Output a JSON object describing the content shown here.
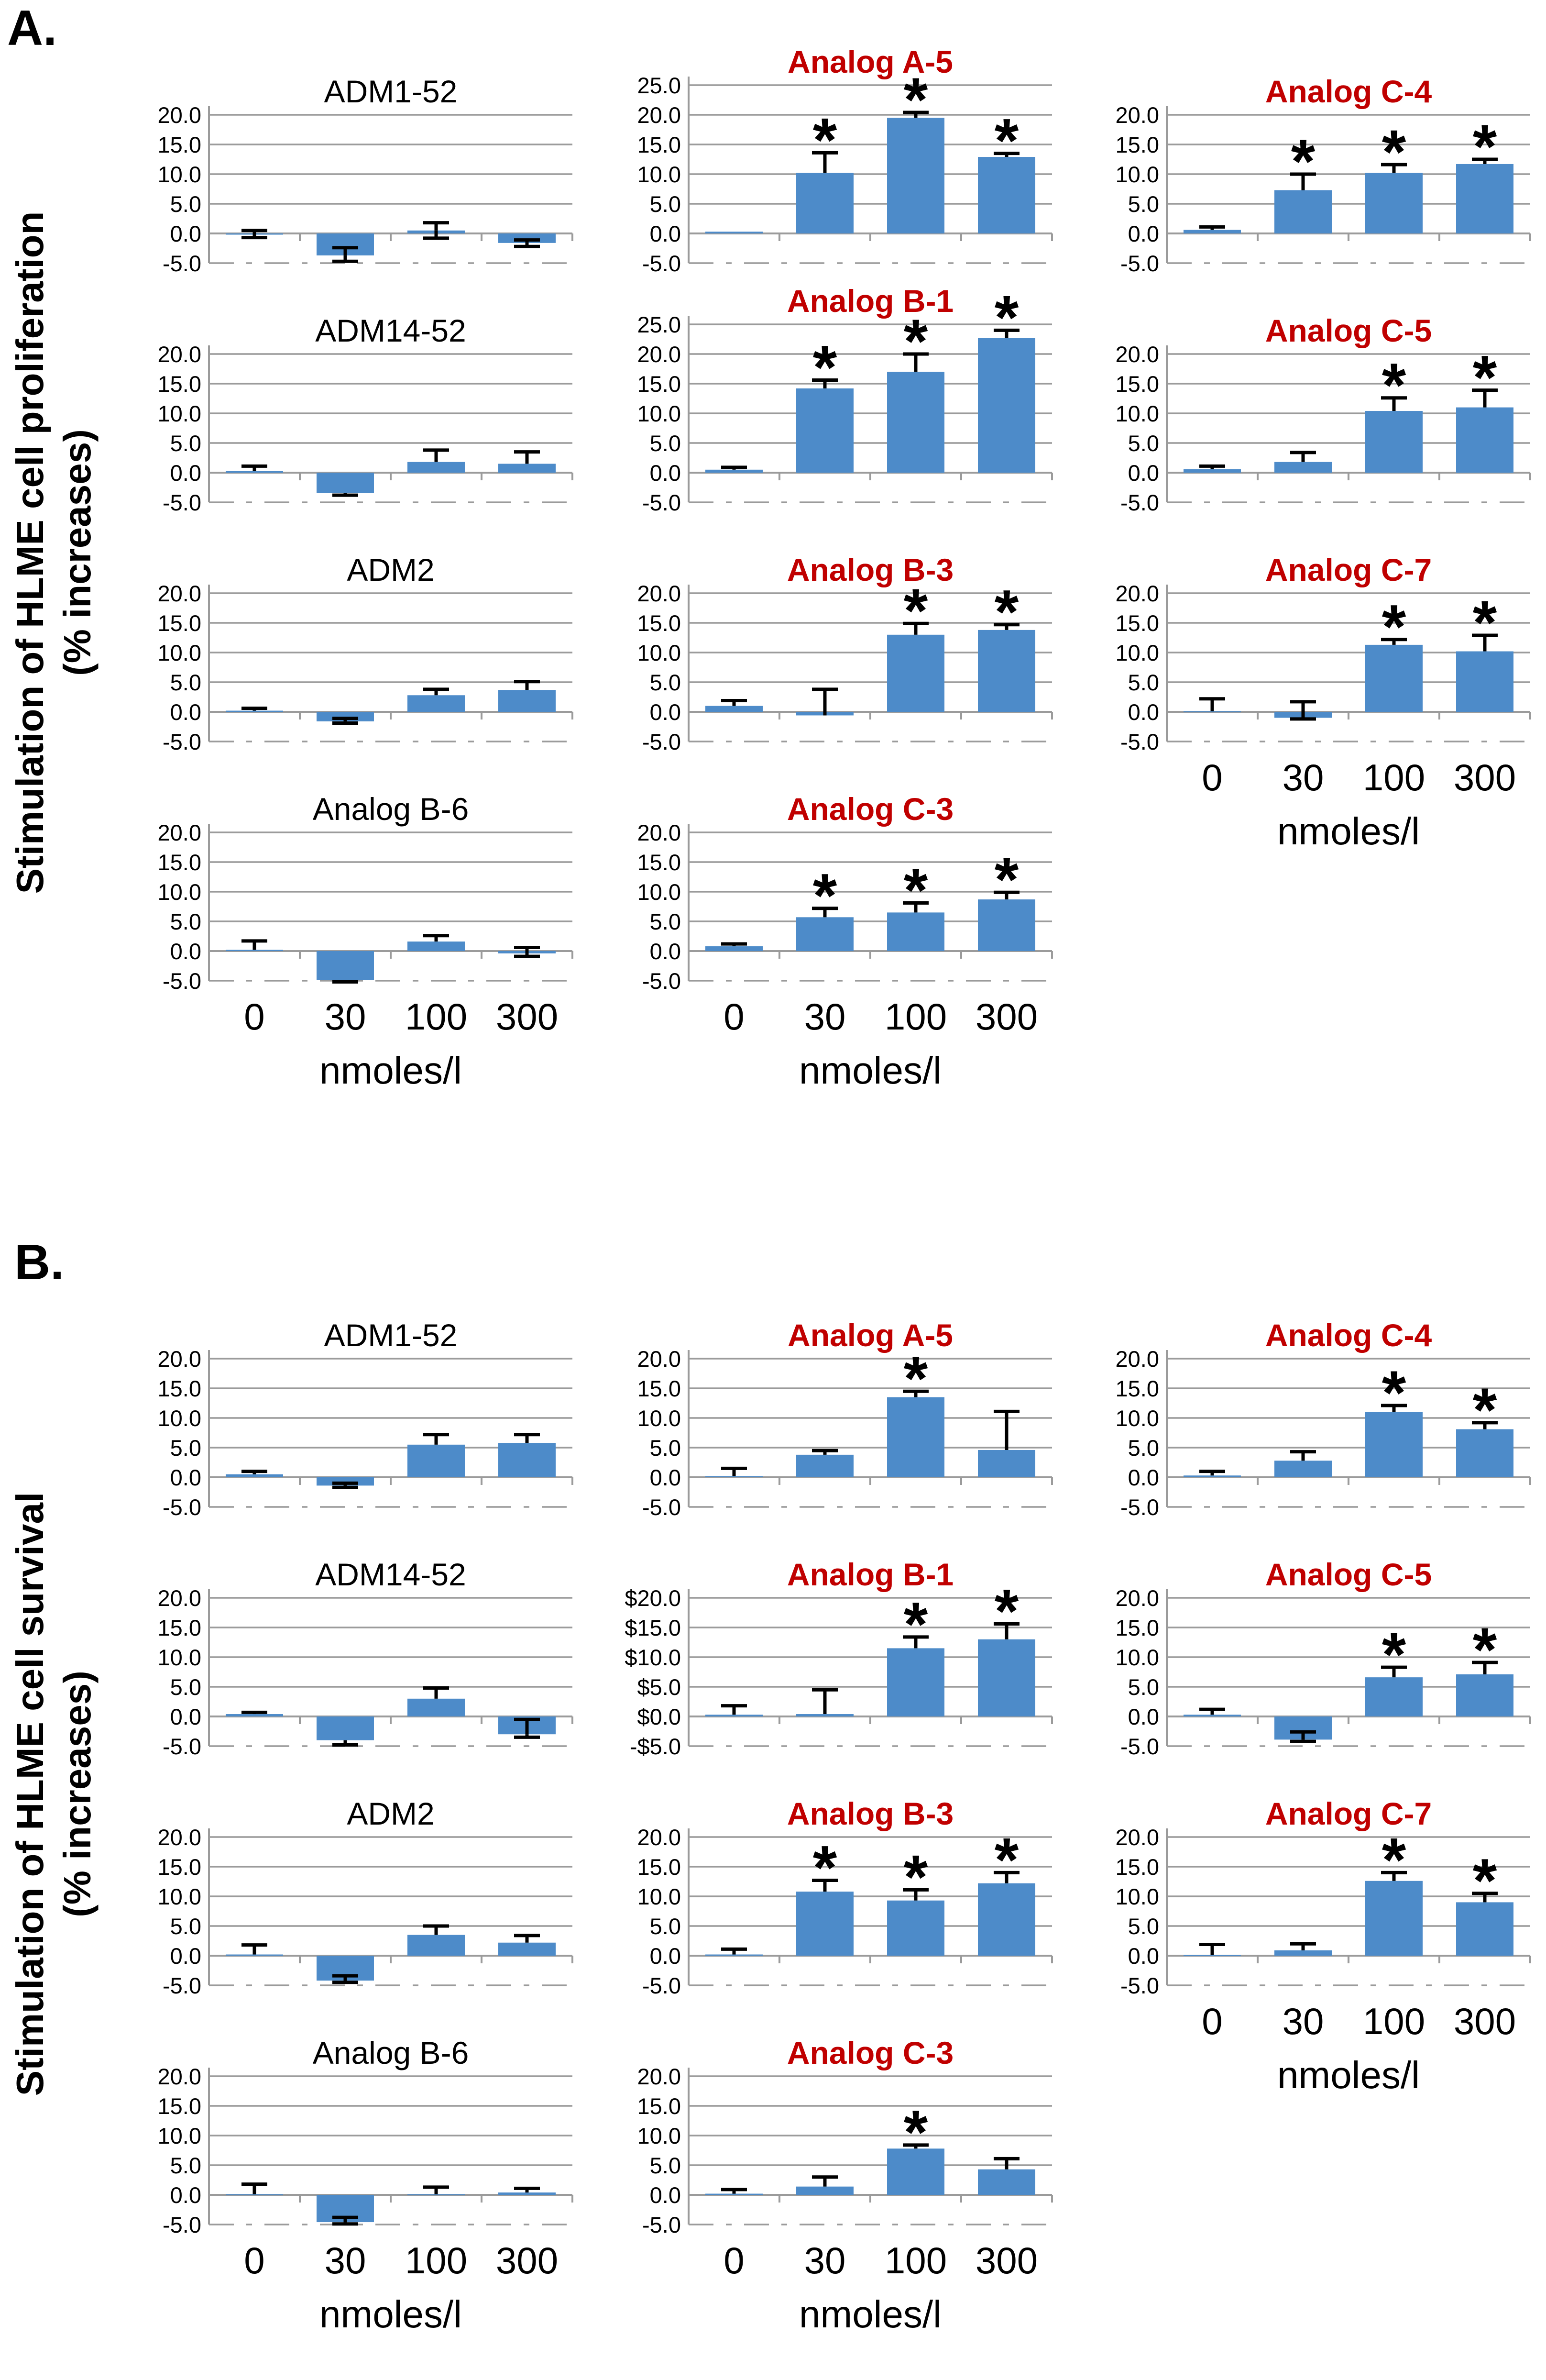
{
  "chart_data": [
    {
      "panel_label": "A.",
      "type": "bar",
      "ylabel_line1": "Stimulation of HLME cell proliferation",
      "ylabel_line2": "(% increases)",
      "xlabel": "nmoles/l",
      "categories": [
        "0",
        "30",
        "100",
        "300"
      ],
      "bar_color": "#4D8BC9",
      "grid_color": "#9B9B9B",
      "red_title_color": "#C00000",
      "black_title_color": "#000000",
      "charts": [
        {
          "title": "ADM1-52",
          "title_color": "#000000",
          "column": 0,
          "row": 0,
          "ylim": [
            -5,
            20
          ],
          "ytick_labels": [
            "20.0",
            "15.0",
            "10.0",
            "5.0",
            "0.0",
            "-5.0"
          ],
          "values": [
            -0.2,
            -3.7,
            0.5,
            -1.6
          ],
          "err_up": [
            0.7,
            1.3,
            1.3,
            0.5
          ],
          "err_dn": [
            0.5,
            1.0,
            1.3,
            0.6
          ],
          "sig": [
            false,
            false,
            false,
            false
          ]
        },
        {
          "title": "ADM14-52",
          "title_color": "#000000",
          "column": 0,
          "row": 1,
          "ylim": [
            -5,
            20
          ],
          "ytick_labels": [
            "20.0",
            "15.0",
            "10.0",
            "5.0",
            "0.0",
            "-5.0"
          ],
          "values": [
            0.3,
            -3.4,
            1.8,
            1.5
          ],
          "err_up": [
            0.8,
            0,
            2.0,
            2.0
          ],
          "err_dn": [
            0,
            0.4,
            0,
            0
          ],
          "sig": [
            false,
            false,
            false,
            false
          ]
        },
        {
          "title": "ADM2",
          "title_color": "#000000",
          "column": 0,
          "row": 2,
          "ylim": [
            -5,
            20
          ],
          "ytick_labels": [
            "20.0",
            "15.0",
            "10.0",
            "5.0",
            "0.0",
            "-5.0"
          ],
          "values": [
            0.2,
            -1.6,
            2.8,
            3.7
          ],
          "err_up": [
            0.4,
            0.5,
            1.0,
            1.4
          ],
          "err_dn": [
            0,
            0.3,
            0,
            0
          ],
          "sig": [
            false,
            false,
            false,
            false
          ]
        },
        {
          "title": "Analog B-6",
          "title_color": "#000000",
          "column": 0,
          "row": 3,
          "ylim": [
            -5,
            20
          ],
          "ytick_labels": [
            "20.0",
            "15.0",
            "10.0",
            "5.0",
            "0.0",
            "-5.0"
          ],
          "values": [
            0.2,
            -4.9,
            1.6,
            -0.4
          ],
          "err_up": [
            1.5,
            0,
            1.0,
            1.0
          ],
          "err_dn": [
            0,
            0.3,
            0,
            0.5
          ],
          "sig": [
            false,
            false,
            false,
            false
          ]
        },
        {
          "title": "Analog A-5",
          "title_color": "#C00000",
          "column": 1,
          "row": 0,
          "ylim": [
            -5,
            25
          ],
          "ytick_labels": [
            "25.0",
            "20.0",
            "15.0",
            "10.0",
            "5.0",
            "0.0",
            "-5.0"
          ],
          "values": [
            0.3,
            10.2,
            19.5,
            12.9
          ],
          "err_up": [
            0,
            3.4,
            0.9,
            0.6
          ],
          "err_dn": [
            0,
            0,
            0,
            0
          ],
          "sig": [
            false,
            true,
            true,
            true
          ]
        },
        {
          "title": "Analog B-1",
          "title_color": "#C00000",
          "column": 1,
          "row": 1,
          "ylim": [
            -5,
            25
          ],
          "ytick_labels": [
            "25.0",
            "20.0",
            "15.0",
            "10.0",
            "5.0",
            "0.0",
            "-5.0"
          ],
          "values": [
            0.5,
            14.2,
            17.0,
            22.7
          ],
          "err_up": [
            0.4,
            1.4,
            3.0,
            1.3
          ],
          "err_dn": [
            0,
            0,
            0,
            0
          ],
          "sig": [
            false,
            true,
            true,
            true
          ]
        },
        {
          "title": "Analog B-3",
          "title_color": "#C00000",
          "column": 1,
          "row": 2,
          "ylim": [
            -5,
            20
          ],
          "ytick_labels": [
            "20.0",
            "15.0",
            "10.0",
            "5.0",
            "0.0",
            "-5.0"
          ],
          "values": [
            1.0,
            -0.6,
            13.0,
            13.8
          ],
          "err_up": [
            0.9,
            4.4,
            1.9,
            0.9
          ],
          "err_dn": [
            0,
            0,
            0,
            0
          ],
          "sig": [
            false,
            false,
            true,
            true
          ]
        },
        {
          "title": "Analog C-3",
          "title_color": "#C00000",
          "column": 1,
          "row": 3,
          "ylim": [
            -5,
            20
          ],
          "ytick_labels": [
            "20.0",
            "15.0",
            "10.0",
            "5.0",
            "0.0",
            "-5.0"
          ],
          "values": [
            0.8,
            5.7,
            6.5,
            8.7
          ],
          "err_up": [
            0.4,
            1.5,
            1.6,
            1.2
          ],
          "err_dn": [
            0,
            0,
            0,
            0
          ],
          "sig": [
            false,
            true,
            true,
            true
          ]
        },
        {
          "title": "Analog C-4",
          "title_color": "#C00000",
          "column": 2,
          "row": 0,
          "ylim": [
            -5,
            20
          ],
          "ytick_labels": [
            "20.0",
            "15.0",
            "10.0",
            "5.0",
            "0.0",
            "-5.0"
          ],
          "values": [
            0.6,
            7.3,
            10.2,
            11.7
          ],
          "err_up": [
            0.5,
            2.7,
            1.4,
            0.8
          ],
          "err_dn": [
            0,
            0,
            0,
            0
          ],
          "sig": [
            false,
            true,
            true,
            true
          ]
        },
        {
          "title": "Analog C-5",
          "title_color": "#C00000",
          "column": 2,
          "row": 1,
          "ylim": [
            -5,
            20
          ],
          "ytick_labels": [
            "20.0",
            "15.0",
            "10.0",
            "5.0",
            "0.0",
            "-5.0"
          ],
          "values": [
            0.6,
            1.8,
            10.4,
            11.0
          ],
          "err_up": [
            0.5,
            1.6,
            2.2,
            2.9
          ],
          "err_dn": [
            0,
            0,
            0,
            0
          ],
          "sig": [
            false,
            false,
            true,
            true
          ]
        },
        {
          "title": "Analog C-7",
          "title_color": "#C00000",
          "column": 2,
          "row": 2,
          "ylim": [
            -5,
            20
          ],
          "ytick_labels": [
            "20.0",
            "15.0",
            "10.0",
            "5.0",
            "0.0",
            "-5.0"
          ],
          "values": [
            0.1,
            -1.0,
            11.3,
            10.2
          ],
          "err_up": [
            2.1,
            2.7,
            0.9,
            2.7
          ],
          "err_dn": [
            0,
            0.2,
            0,
            0
          ],
          "sig": [
            false,
            false,
            true,
            true
          ]
        }
      ]
    },
    {
      "panel_label": "B.",
      "type": "bar",
      "ylabel_line1": "Stimulation of HLME cell survival",
      "ylabel_line2": "(% increases)",
      "xlabel": "nmoles/l",
      "categories": [
        "0",
        "30",
        "100",
        "300"
      ],
      "bar_color": "#4D8BC9",
      "grid_color": "#9B9B9B",
      "red_title_color": "#C00000",
      "black_title_color": "#000000",
      "charts": [
        {
          "title": "ADM1-52",
          "title_color": "#000000",
          "column": 0,
          "row": 0,
          "ylim": [
            -5,
            20
          ],
          "ytick_labels": [
            "20.0",
            "15.0",
            "10.0",
            "5.0",
            "0.0",
            "-5.0"
          ],
          "values": [
            0.5,
            -1.4,
            5.5,
            5.8
          ],
          "err_up": [
            0.5,
            0.4,
            1.7,
            1.4
          ],
          "err_dn": [
            0,
            0.3,
            0,
            0
          ],
          "sig": [
            false,
            false,
            false,
            false
          ]
        },
        {
          "title": "ADM14-52",
          "title_color": "#000000",
          "column": 0,
          "row": 1,
          "ylim": [
            -5,
            20
          ],
          "ytick_labels": [
            "20.0",
            "15.0",
            "10.0",
            "5.0",
            "0.0",
            "-5.0"
          ],
          "values": [
            0.4,
            -4.0,
            3.0,
            -3.0
          ],
          "err_up": [
            0.3,
            0,
            1.8,
            2.5
          ],
          "err_dn": [
            0,
            0.8,
            0,
            0.5
          ],
          "sig": [
            false,
            false,
            false,
            false
          ]
        },
        {
          "title": "ADM2",
          "title_color": "#000000",
          "column": 0,
          "row": 2,
          "ylim": [
            -5,
            20
          ],
          "ytick_labels": [
            "20.0",
            "15.0",
            "10.0",
            "5.0",
            "0.0",
            "-5.0"
          ],
          "values": [
            0.2,
            -4.2,
            3.5,
            2.2
          ],
          "err_up": [
            1.6,
            0.8,
            1.5,
            1.2
          ],
          "err_dn": [
            0,
            0.3,
            0,
            0
          ],
          "sig": [
            false,
            false,
            false,
            false
          ]
        },
        {
          "title": "Analog B-6",
          "title_color": "#000000",
          "column": 0,
          "row": 3,
          "ylim": [
            -5,
            20
          ],
          "ytick_labels": [
            "20.0",
            "15.0",
            "10.0",
            "5.0",
            "0.0",
            "-5.0"
          ],
          "values": [
            0.1,
            -4.6,
            0.1,
            0.4
          ],
          "err_up": [
            1.7,
            0.8,
            1.2,
            0.7
          ],
          "err_dn": [
            0,
            0.3,
            0,
            0
          ],
          "sig": [
            false,
            false,
            false,
            false
          ]
        },
        {
          "title": "Analog A-5",
          "title_color": "#C00000",
          "column": 1,
          "row": 0,
          "ylim": [
            -5,
            20
          ],
          "ytick_labels": [
            "20.0",
            "15.0",
            "10.0",
            "5.0",
            "0.0",
            "-5.0"
          ],
          "values": [
            0.2,
            3.8,
            13.5,
            4.6
          ],
          "err_up": [
            1.3,
            0.7,
            1.0,
            6.5
          ],
          "err_dn": [
            0,
            0,
            0,
            0
          ],
          "sig": [
            false,
            false,
            true,
            false
          ]
        },
        {
          "title": "Analog B-1",
          "title_color": "#C00000",
          "column": 1,
          "row": 1,
          "ylim": [
            -5,
            20
          ],
          "ytick_labels": [
            "$20.0",
            "$15.0",
            "$10.0",
            "$5.0",
            "$0.0",
            "-$5.0"
          ],
          "values": [
            0.3,
            0.4,
            11.5,
            13.0
          ],
          "err_up": [
            1.5,
            4.1,
            1.9,
            2.6
          ],
          "err_dn": [
            0,
            0,
            0,
            0
          ],
          "sig": [
            false,
            false,
            true,
            true
          ]
        },
        {
          "title": "Analog B-3",
          "title_color": "#C00000",
          "column": 1,
          "row": 2,
          "ylim": [
            -5,
            20
          ],
          "ytick_labels": [
            "20.0",
            "15.0",
            "10.0",
            "5.0",
            "0.0",
            "-5.0"
          ],
          "values": [
            0.2,
            10.8,
            9.3,
            12.2
          ],
          "err_up": [
            0.9,
            1.9,
            1.8,
            1.8
          ],
          "err_dn": [
            0,
            0,
            0,
            0
          ],
          "sig": [
            false,
            true,
            true,
            true
          ]
        },
        {
          "title": "Analog C-3",
          "title_color": "#C00000",
          "column": 1,
          "row": 3,
          "ylim": [
            -5,
            20
          ],
          "ytick_labels": [
            "20.0",
            "15.0",
            "10.0",
            "5.0",
            "0.0",
            "-5.0"
          ],
          "values": [
            0.2,
            1.4,
            7.8,
            4.3
          ],
          "err_up": [
            0.7,
            1.6,
            0.6,
            1.8
          ],
          "err_dn": [
            0,
            0,
            0,
            0
          ],
          "sig": [
            false,
            false,
            true,
            false
          ]
        },
        {
          "title": "Analog C-4",
          "title_color": "#C00000",
          "column": 2,
          "row": 0,
          "ylim": [
            -5,
            20
          ],
          "ytick_labels": [
            "20.0",
            "15.0",
            "10.0",
            "5.0",
            "0.0",
            "-5.0"
          ],
          "values": [
            0.3,
            2.8,
            11.0,
            8.1
          ],
          "err_up": [
            0.7,
            1.5,
            1.1,
            1.1
          ],
          "err_dn": [
            0,
            0,
            0,
            0
          ],
          "sig": [
            false,
            false,
            true,
            true
          ]
        },
        {
          "title": "Analog C-5",
          "title_color": "#C00000",
          "column": 2,
          "row": 1,
          "ylim": [
            -5,
            20
          ],
          "ytick_labels": [
            "20.0",
            "15.0",
            "10.0",
            "5.0",
            "0.0",
            "-5.0"
          ],
          "values": [
            0.3,
            -3.9,
            6.6,
            7.1
          ],
          "err_up": [
            0.9,
            1.3,
            1.7,
            2.0
          ],
          "err_dn": [
            0,
            0.3,
            0,
            0
          ],
          "sig": [
            false,
            false,
            true,
            true
          ]
        },
        {
          "title": "Analog C-7",
          "title_color": "#C00000",
          "column": 2,
          "row": 2,
          "ylim": [
            -5,
            20
          ],
          "ytick_labels": [
            "20.0",
            "15.0",
            "10.0",
            "5.0",
            "0.0",
            "-5.0"
          ],
          "values": [
            0.1,
            0.9,
            12.6,
            9.0
          ],
          "err_up": [
            1.8,
            1.1,
            1.4,
            1.5
          ],
          "err_dn": [
            0,
            0,
            0,
            0
          ],
          "sig": [
            false,
            false,
            true,
            true
          ]
        }
      ]
    }
  ]
}
